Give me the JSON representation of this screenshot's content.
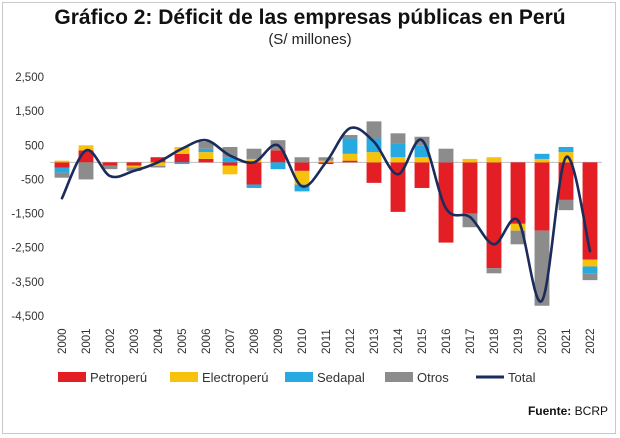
{
  "title": "Gráfico 2: Déficit de las empresas públicas en Perú",
  "subtitle": "(S/ millones)",
  "source_label": "Fuente:",
  "source_value": "BCRP",
  "colors": {
    "Petroperú": "#e31e24",
    "Electroperú": "#f7c20c",
    "Sedapal": "#27a9e1",
    "Otros": "#8c8c8c",
    "Total": "#1a2b5c"
  },
  "chart_data": {
    "type": "bar",
    "stacked": true,
    "title": "Gráfico 2: Déficit de las empresas públicas en Perú",
    "subtitle": "(S/ millones)",
    "categories": [
      "2000",
      "2001",
      "2002",
      "2003",
      "2004",
      "2005",
      "2006",
      "2007",
      "2008",
      "2009",
      "2010",
      "2011",
      "2012",
      "2013",
      "2014",
      "2015",
      "2016",
      "2017",
      "2018",
      "2019",
      "2020",
      "2021",
      "2022"
    ],
    "yticks": [
      "2,500",
      "1,500",
      "500",
      "-500",
      "-1,500",
      "-2,500",
      "-3,500",
      "-4,500"
    ],
    "ytick_values": [
      2500,
      1500,
      500,
      -500,
      -1500,
      -2500,
      -3500,
      -4500
    ],
    "ylim": [
      -4500,
      2500
    ],
    "series": [
      {
        "name": "Petroperú",
        "values": [
          -150,
          350,
          -100,
          -100,
          150,
          250,
          100,
          -100,
          -650,
          350,
          -250,
          -50,
          50,
          -600,
          -1450,
          -750,
          -2350,
          -1500,
          -3100,
          -1800,
          -2000,
          -1100,
          -2850
        ]
      },
      {
        "name": "Electroperú",
        "values": [
          50,
          150,
          0,
          -50,
          -100,
          200,
          200,
          -250,
          100,
          0,
          -400,
          50,
          200,
          300,
          150,
          150,
          0,
          100,
          150,
          -200,
          100,
          300,
          -200
        ]
      },
      {
        "name": "Sedapal",
        "values": [
          -150,
          0,
          0,
          0,
          0,
          -50,
          100,
          150,
          -100,
          -200,
          -200,
          0,
          450,
          400,
          400,
          350,
          0,
          0,
          0,
          0,
          150,
          150,
          -200
        ]
      },
      {
        "name": "Otros",
        "values": [
          -150,
          -500,
          -100,
          -100,
          -50,
          0,
          200,
          300,
          300,
          300,
          150,
          100,
          100,
          500,
          300,
          250,
          400,
          -400,
          -150,
          -400,
          -2200,
          -300,
          -200
        ]
      }
    ],
    "line": {
      "name": "Total",
      "values": [
        -1050,
        350,
        -400,
        -250,
        0,
        400,
        650,
        200,
        0,
        500,
        -700,
        0,
        1000,
        600,
        -350,
        650,
        -1350,
        -1600,
        -2400,
        -1700,
        -4050,
        150,
        -2600
      ]
    },
    "legend_position": "bottom",
    "grid": false
  }
}
